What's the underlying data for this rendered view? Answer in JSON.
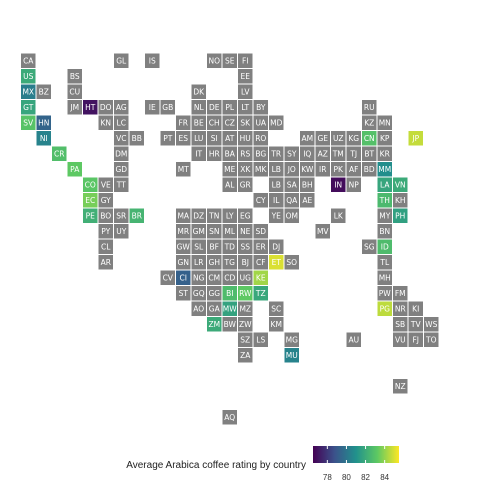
{
  "chart_data": {
    "type": "heatmap",
    "title": "",
    "legend_title": "Average Arabica coffee rating by country",
    "legend_ticks": [
      78,
      80,
      82,
      84
    ],
    "color_range": [
      76.5,
      85.5
    ],
    "palette": [
      "#440154",
      "#3b528b",
      "#21918c",
      "#5ec962",
      "#fde725"
    ],
    "na_color": "#808080",
    "legend_position": "bottom",
    "grid": false,
    "rows": [
      {
        "cells": [
          {
            "code": "CA",
            "col": 0
          },
          {
            "code": "GL",
            "col": 6
          },
          {
            "code": "IS",
            "col": 8
          },
          {
            "code": "NO",
            "col": 12
          },
          {
            "code": "SE",
            "col": 13
          },
          {
            "code": "FI",
            "col": 14
          }
        ]
      },
      {
        "cells": [
          {
            "code": "US",
            "col": 0,
            "value": 82.0
          },
          {
            "code": "BS",
            "col": 3
          },
          {
            "code": "EE",
            "col": 14
          }
        ]
      },
      {
        "cells": [
          {
            "code": "MX",
            "col": 0,
            "value": 80.3
          },
          {
            "code": "BZ",
            "col": 1
          },
          {
            "code": "CU",
            "col": 3
          },
          {
            "code": "DK",
            "col": 11
          },
          {
            "code": "LV",
            "col": 14
          }
        ]
      },
      {
        "cells": [
          {
            "code": "GT",
            "col": 0,
            "value": 81.8
          },
          {
            "code": "JM",
            "col": 3
          },
          {
            "code": "HT",
            "col": 4,
            "value": 77.0
          },
          {
            "code": "DO",
            "col": 5
          },
          {
            "code": "AG",
            "col": 6
          },
          {
            "code": "IE",
            "col": 8
          },
          {
            "code": "GB",
            "col": 9
          },
          {
            "code": "NL",
            "col": 11
          },
          {
            "code": "DE",
            "col": 12
          },
          {
            "code": "PL",
            "col": 13
          },
          {
            "code": "LT",
            "col": 14
          },
          {
            "code": "BY",
            "col": 15
          },
          {
            "code": "RU",
            "col": 22
          }
        ]
      },
      {
        "cells": [
          {
            "code": "SV",
            "col": 0,
            "value": 83.0
          },
          {
            "code": "HN",
            "col": 1,
            "value": 79.4
          },
          {
            "code": "KN",
            "col": 5
          },
          {
            "code": "LC",
            "col": 6
          },
          {
            "code": "FR",
            "col": 10
          },
          {
            "code": "BE",
            "col": 11
          },
          {
            "code": "CH",
            "col": 12
          },
          {
            "code": "CZ",
            "col": 13
          },
          {
            "code": "SK",
            "col": 14
          },
          {
            "code": "UA",
            "col": 15
          },
          {
            "code": "MD",
            "col": 16
          },
          {
            "code": "KZ",
            "col": 22
          },
          {
            "code": "MN",
            "col": 23
          }
        ]
      },
      {
        "cells": [
          {
            "code": "NI",
            "col": 1,
            "value": 80.5
          },
          {
            "code": "VC",
            "col": 6
          },
          {
            "code": "BB",
            "col": 7
          },
          {
            "code": "PT",
            "col": 9
          },
          {
            "code": "ES",
            "col": 10
          },
          {
            "code": "LU",
            "col": 11
          },
          {
            "code": "SI",
            "col": 12
          },
          {
            "code": "AT",
            "col": 13
          },
          {
            "code": "HU",
            "col": 14
          },
          {
            "code": "RO",
            "col": 15
          },
          {
            "code": "AM",
            "col": 18
          },
          {
            "code": "GE",
            "col": 19
          },
          {
            "code": "UZ",
            "col": 20
          },
          {
            "code": "KG",
            "col": 21
          },
          {
            "code": "CN",
            "col": 22,
            "value": 82.9
          },
          {
            "code": "KP",
            "col": 23
          },
          {
            "code": "JP",
            "col": 25,
            "value": 84.7
          }
        ]
      },
      {
        "cells": [
          {
            "code": "CR",
            "col": 2,
            "value": 82.8
          },
          {
            "code": "DM",
            "col": 6
          },
          {
            "code": "IT",
            "col": 11
          },
          {
            "code": "HR",
            "col": 12
          },
          {
            "code": "BA",
            "col": 13
          },
          {
            "code": "RS",
            "col": 14
          },
          {
            "code": "BG",
            "col": 15
          },
          {
            "code": "TR",
            "col": 16
          },
          {
            "code": "SY",
            "col": 17
          },
          {
            "code": "IQ",
            "col": 18
          },
          {
            "code": "AZ",
            "col": 19
          },
          {
            "code": "TM",
            "col": 20
          },
          {
            "code": "TJ",
            "col": 21
          },
          {
            "code": "BT",
            "col": 22
          },
          {
            "code": "KR",
            "col": 23
          }
        ]
      },
      {
        "cells": [
          {
            "code": "PA",
            "col": 3,
            "value": 83.2
          },
          {
            "code": "GD",
            "col": 6
          },
          {
            "code": "MT",
            "col": 10
          },
          {
            "code": "ME",
            "col": 13
          },
          {
            "code": "XK",
            "col": 14
          },
          {
            "code": "MK",
            "col": 15
          },
          {
            "code": "LB",
            "col": 16
          },
          {
            "code": "JO",
            "col": 17
          },
          {
            "code": "KW",
            "col": 18
          },
          {
            "code": "IR",
            "col": 19
          },
          {
            "code": "PK",
            "col": 20
          },
          {
            "code": "AF",
            "col": 21
          },
          {
            "code": "BD",
            "col": 22
          },
          {
            "code": "MM",
            "col": 23,
            "value": 80.9
          }
        ]
      },
      {
        "cells": [
          {
            "code": "CO",
            "col": 4,
            "value": 83.1
          },
          {
            "code": "VE",
            "col": 5
          },
          {
            "code": "TT",
            "col": 6
          },
          {
            "code": "AL",
            "col": 13
          },
          {
            "code": "GR",
            "col": 14
          },
          {
            "code": "LB",
            "col": 16
          },
          {
            "code": "SA",
            "col": 17
          },
          {
            "code": "BH",
            "col": 18
          },
          {
            "code": "IN",
            "col": 20,
            "value": 76.8
          },
          {
            "code": "NP",
            "col": 21
          },
          {
            "code": "LA",
            "col": 23,
            "value": 81.8
          },
          {
            "code": "VN",
            "col": 24,
            "value": 82.0
          }
        ]
      },
      {
        "cells": [
          {
            "code": "EC",
            "col": 4,
            "value": 83.6
          },
          {
            "code": "GY",
            "col": 5
          },
          {
            "code": "CY",
            "col": 15
          },
          {
            "code": "IL",
            "col": 16
          },
          {
            "code": "QA",
            "col": 17
          },
          {
            "code": "AE",
            "col": 18
          },
          {
            "code": "TH",
            "col": 23,
            "value": 82.6
          },
          {
            "code": "KH",
            "col": 24
          }
        ]
      },
      {
        "cells": [
          {
            "code": "PE",
            "col": 4,
            "value": 82.2
          },
          {
            "code": "BO",
            "col": 5
          },
          {
            "code": "SR",
            "col": 6
          },
          {
            "code": "BR",
            "col": 7,
            "value": 82.4
          },
          {
            "code": "MA",
            "col": 10
          },
          {
            "code": "DZ",
            "col": 11
          },
          {
            "code": "TN",
            "col": 12
          },
          {
            "code": "LY",
            "col": 13
          },
          {
            "code": "EG",
            "col": 14
          },
          {
            "code": "YE",
            "col": 16
          },
          {
            "code": "OM",
            "col": 17
          },
          {
            "code": "LK",
            "col": 20
          },
          {
            "code": "MY",
            "col": 23
          },
          {
            "code": "PH",
            "col": 24,
            "value": 81.6
          }
        ]
      },
      {
        "cells": [
          {
            "code": "PY",
            "col": 5
          },
          {
            "code": "UY",
            "col": 6
          },
          {
            "code": "MR",
            "col": 10
          },
          {
            "code": "GM",
            "col": 11
          },
          {
            "code": "SN",
            "col": 12
          },
          {
            "code": "ML",
            "col": 13
          },
          {
            "code": "NE",
            "col": 14
          },
          {
            "code": "SD",
            "col": 15
          },
          {
            "code": "MV",
            "col": 19
          },
          {
            "code": "BN",
            "col": 23
          }
        ]
      },
      {
        "cells": [
          {
            "code": "CL",
            "col": 5
          },
          {
            "code": "GW",
            "col": 10
          },
          {
            "code": "SL",
            "col": 11
          },
          {
            "code": "BF",
            "col": 12
          },
          {
            "code": "TD",
            "col": 13
          },
          {
            "code": "SS",
            "col": 14
          },
          {
            "code": "ER",
            "col": 15
          },
          {
            "code": "DJ",
            "col": 16
          },
          {
            "code": "SG",
            "col": 22
          },
          {
            "code": "ID",
            "col": 23,
            "value": 82.7
          }
        ]
      },
      {
        "cells": [
          {
            "code": "AR",
            "col": 5
          },
          {
            "code": "GN",
            "col": 10
          },
          {
            "code": "LR",
            "col": 11
          },
          {
            "code": "GH",
            "col": 12
          },
          {
            "code": "TG",
            "col": 13
          },
          {
            "code": "BJ",
            "col": 14
          },
          {
            "code": "CF",
            "col": 15
          },
          {
            "code": "ET",
            "col": 16,
            "value": 85.0
          },
          {
            "code": "SO",
            "col": 17
          },
          {
            "code": "TL",
            "col": 23
          }
        ]
      },
      {
        "cells": [
          {
            "code": "CV",
            "col": 9
          },
          {
            "code": "CI",
            "col": 10,
            "value": 79.3
          },
          {
            "code": "NG",
            "col": 11
          },
          {
            "code": "CM",
            "col": 12
          },
          {
            "code": "CD",
            "col": 13
          },
          {
            "code": "UG",
            "col": 14
          },
          {
            "code": "KE",
            "col": 15,
            "value": 84.2
          },
          {
            "code": "MH",
            "col": 23
          }
        ]
      },
      {
        "cells": [
          {
            "code": "ST",
            "col": 10
          },
          {
            "code": "GQ",
            "col": 11
          },
          {
            "code": "GG",
            "col": 12
          },
          {
            "code": "BI",
            "col": 13,
            "value": 82.7
          },
          {
            "code": "RW",
            "col": 14,
            "value": 83.2
          },
          {
            "code": "TZ",
            "col": 15,
            "value": 81.9
          },
          {
            "code": "PW",
            "col": 23
          },
          {
            "code": "FM",
            "col": 24
          }
        ]
      },
      {
        "cells": [
          {
            "code": "AO",
            "col": 11
          },
          {
            "code": "GA",
            "col": 12
          },
          {
            "code": "MW",
            "col": 13,
            "value": 81.7
          },
          {
            "code": "MZ",
            "col": 14
          },
          {
            "code": "SC",
            "col": 16
          },
          {
            "code": "PG",
            "col": 23,
            "value": 84.6
          },
          {
            "code": "NR",
            "col": 24
          },
          {
            "code": "KI",
            "col": 25
          }
        ]
      },
      {
        "cells": [
          {
            "code": "ZM",
            "col": 12,
            "value": 82.0
          },
          {
            "code": "BW",
            "col": 13
          },
          {
            "code": "ZW",
            "col": 14
          },
          {
            "code": "KM",
            "col": 16
          },
          {
            "code": "SB",
            "col": 24
          },
          {
            "code": "TV",
            "col": 25
          },
          {
            "code": "WS",
            "col": 26
          }
        ]
      },
      {
        "cells": [
          {
            "code": "SZ",
            "col": 14
          },
          {
            "code": "LS",
            "col": 15
          },
          {
            "code": "MG",
            "col": 17
          },
          {
            "code": "AU",
            "col": 21
          },
          {
            "code": "VU",
            "col": 24
          },
          {
            "code": "FJ",
            "col": 25
          },
          {
            "code": "TO",
            "col": 26
          }
        ]
      },
      {
        "cells": [
          {
            "code": "ZA",
            "col": 14
          },
          {
            "code": "MU",
            "col": 17,
            "value": 80.5
          }
        ]
      },
      {
        "cells": []
      },
      {
        "cells": [
          {
            "code": "NZ",
            "col": 24
          }
        ]
      },
      {
        "cells": []
      },
      {
        "cells": [
          {
            "code": "AQ",
            "col": 13
          }
        ]
      }
    ]
  }
}
